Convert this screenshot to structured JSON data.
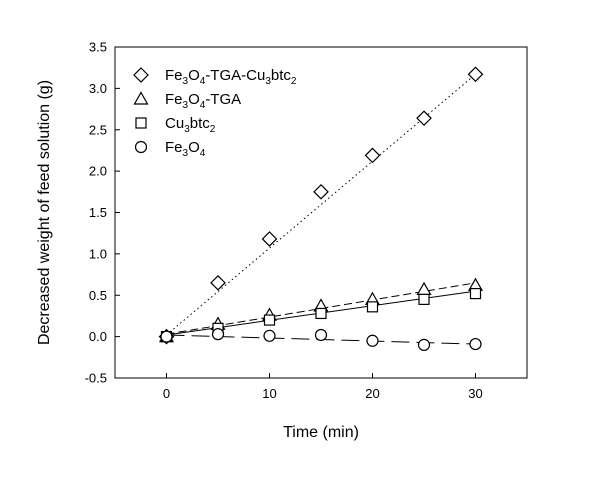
{
  "chart_data": {
    "type": "scatter",
    "xlabel": "Time (min)",
    "ylabel": "Decreased weight of feed solution (g)",
    "xlim": [
      -5,
      35
    ],
    "ylim": [
      -0.5,
      3.5
    ],
    "xticks": [
      0,
      10,
      20,
      30
    ],
    "yticks": [
      -0.5,
      0.0,
      0.5,
      1.0,
      1.5,
      2.0,
      2.5,
      3.0,
      3.5
    ],
    "ytick_labels": [
      "-0.5",
      "0.0",
      "0.5",
      "1.0",
      "1.5",
      "2.0",
      "2.5",
      "3.0",
      "3.5"
    ],
    "grid": false,
    "legend_position": "top-left",
    "series": [
      {
        "name": "Fe3O4-TGA-Cu3btc2",
        "legend_parts": [
          [
            "Fe",
            ""
          ],
          [
            "3",
            "sub"
          ],
          [
            "O",
            ""
          ],
          [
            "4",
            "sub"
          ],
          [
            "-TGA-Cu",
            ""
          ],
          [
            "3",
            "sub"
          ],
          [
            "btc",
            ""
          ],
          [
            "2",
            "sub"
          ]
        ],
        "marker": "diamond",
        "line": "dotted",
        "x": [
          0,
          5,
          10,
          15,
          20,
          25,
          30
        ],
        "y": [
          0.0,
          0.65,
          1.18,
          1.75,
          2.19,
          2.64,
          3.17
        ],
        "fit": [
          [
            0,
            0.02
          ],
          [
            30,
            3.17
          ]
        ]
      },
      {
        "name": "Fe3O4-TGA",
        "legend_parts": [
          [
            "Fe",
            ""
          ],
          [
            "3",
            "sub"
          ],
          [
            "O",
            ""
          ],
          [
            "4",
            "sub"
          ],
          [
            "-TGA",
            ""
          ]
        ],
        "marker": "triangle",
        "line": "dashed",
        "x": [
          0,
          5,
          10,
          15,
          20,
          25,
          30
        ],
        "y": [
          0.0,
          0.15,
          0.26,
          0.37,
          0.45,
          0.57,
          0.62
        ],
        "fit": [
          [
            0,
            0.03
          ],
          [
            30,
            0.65
          ]
        ]
      },
      {
        "name": "Cu3btc2",
        "legend_parts": [
          [
            "Cu",
            ""
          ],
          [
            "3",
            "sub"
          ],
          [
            "btc",
            ""
          ],
          [
            "2",
            "sub"
          ]
        ],
        "marker": "square",
        "line": "solid",
        "x": [
          0,
          5,
          10,
          15,
          20,
          25,
          30
        ],
        "y": [
          0.0,
          0.1,
          0.2,
          0.28,
          0.36,
          0.45,
          0.52
        ],
        "fit": [
          [
            0,
            0.02
          ],
          [
            30,
            0.55
          ]
        ]
      },
      {
        "name": "Fe3O4",
        "legend_parts": [
          [
            "Fe",
            ""
          ],
          [
            "3",
            "sub"
          ],
          [
            "O",
            ""
          ],
          [
            "4",
            "sub"
          ]
        ],
        "marker": "circle",
        "line": "long-dash",
        "x": [
          0,
          5,
          10,
          15,
          20,
          25,
          30
        ],
        "y": [
          0.0,
          0.03,
          0.01,
          0.02,
          -0.05,
          -0.1,
          -0.09
        ],
        "fit": [
          [
            0,
            0.02
          ],
          [
            30,
            -0.09
          ]
        ]
      }
    ]
  }
}
